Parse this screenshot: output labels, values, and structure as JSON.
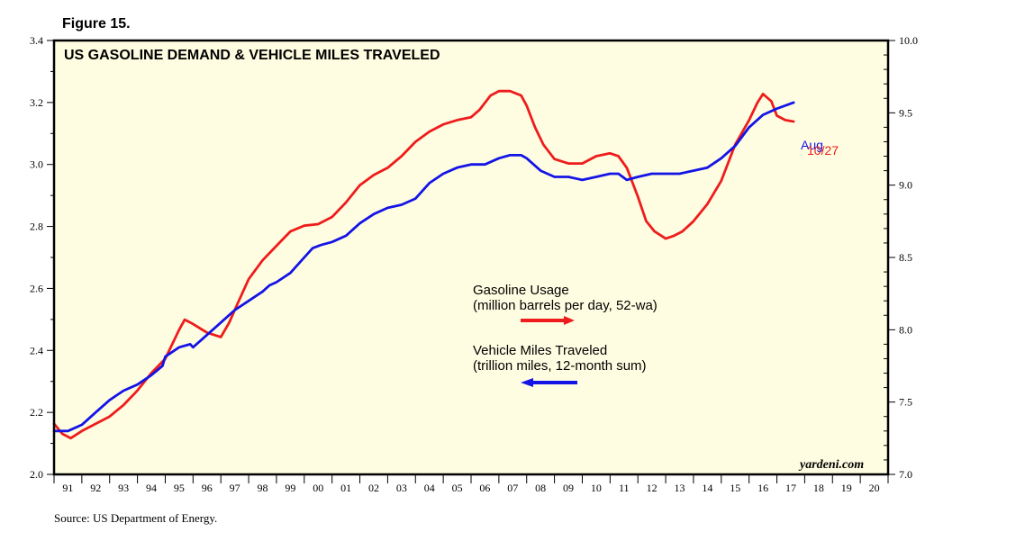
{
  "figure_label": "Figure 15.",
  "source": "Source: US Department of Energy.",
  "watermark": "yardeni.com",
  "colors": {
    "plot_bg": "#FFFDE1",
    "gasoline": "#EE1C1C",
    "vmt": "#1414E6",
    "frame": "#000000"
  },
  "chart_data": {
    "type": "line",
    "title": "US GASOLINE DEMAND & VEHICLE MILES TRAVELED",
    "x_tick_labels": [
      "91",
      "92",
      "93",
      "94",
      "95",
      "96",
      "97",
      "98",
      "99",
      "00",
      "01",
      "02",
      "03",
      "04",
      "05",
      "06",
      "07",
      "08",
      "09",
      "10",
      "11",
      "12",
      "13",
      "14",
      "15",
      "16",
      "17",
      "18",
      "19",
      "20"
    ],
    "xlim": [
      1991,
      2021
    ],
    "left_axis": {
      "ylim": [
        2.0,
        3.4
      ],
      "tick_labels": [
        "2.0",
        "2.2",
        "2.4",
        "2.6",
        "2.8",
        "3.0",
        "3.2",
        "3.4"
      ],
      "ticks": [
        2.0,
        2.2,
        2.4,
        2.6,
        2.8,
        3.0,
        3.2,
        3.4
      ]
    },
    "right_axis": {
      "ylim": [
        7.0,
        10.0
      ],
      "tick_labels": [
        "7.0",
        "7.5",
        "8.0",
        "8.5",
        "9.0",
        "9.5",
        "10.0"
      ],
      "ticks": [
        7.0,
        7.5,
        8.0,
        8.5,
        9.0,
        9.5,
        10.0
      ]
    },
    "legend": [
      {
        "lines": [
          "Gasoline Usage",
          "(million barrels per day, 52-wa)"
        ],
        "arrow": "right"
      },
      {
        "lines": [
          "Vehicle Miles Traveled",
          "(trillion miles, 12-month sum)"
        ],
        "arrow": "left"
      }
    ],
    "series": [
      {
        "name": "Vehicle Miles Traveled",
        "axis": "left",
        "end_label": "Aug",
        "x": [
          1991.0,
          1991.5,
          1992.0,
          1992.5,
          1993.0,
          1993.5,
          1994.0,
          1994.5,
          1994.9,
          1995.0,
          1995.5,
          1995.9,
          1996.0,
          1996.5,
          1997.0,
          1997.5,
          1998.0,
          1998.5,
          1998.75,
          1999.0,
          1999.5,
          2000.0,
          2000.3,
          2000.6,
          2001.0,
          2001.5,
          2002.0,
          2002.5,
          2003.0,
          2003.5,
          2004.0,
          2004.5,
          2005.0,
          2005.5,
          2006.0,
          2006.5,
          2007.0,
          2007.4,
          2007.8,
          2008.0,
          2008.5,
          2009.0,
          2009.5,
          2010.0,
          2010.5,
          2011.0,
          2011.3,
          2011.6,
          2012.0,
          2012.5,
          2013.0,
          2013.5,
          2014.0,
          2014.5,
          2015.0,
          2015.5,
          2016.0,
          2016.5,
          2017.0,
          2017.6
        ],
        "values": [
          2.14,
          2.14,
          2.16,
          2.2,
          2.24,
          2.27,
          2.29,
          2.32,
          2.35,
          2.38,
          2.41,
          2.42,
          2.41,
          2.45,
          2.49,
          2.53,
          2.56,
          2.59,
          2.61,
          2.62,
          2.65,
          2.7,
          2.73,
          2.74,
          2.75,
          2.77,
          2.81,
          2.84,
          2.86,
          2.87,
          2.89,
          2.94,
          2.97,
          2.99,
          3.0,
          3.0,
          3.02,
          3.03,
          3.03,
          3.02,
          2.98,
          2.96,
          2.96,
          2.95,
          2.96,
          2.97,
          2.97,
          2.95,
          2.96,
          2.97,
          2.97,
          2.97,
          2.98,
          2.99,
          3.02,
          3.06,
          3.12,
          3.16,
          3.18,
          3.2
        ]
      },
      {
        "name": "Gasoline Usage",
        "axis": "right",
        "end_label": "10/27",
        "x": [
          1991.0,
          1991.3,
          1991.6,
          1992.0,
          1992.5,
          1993.0,
          1993.5,
          1994.0,
          1994.5,
          1995.0,
          1995.5,
          1995.7,
          1996.0,
          1996.5,
          1997.0,
          1997.3,
          1997.6,
          1998.0,
          1998.5,
          1999.0,
          1999.5,
          2000.0,
          2000.5,
          2001.0,
          2001.5,
          2002.0,
          2002.5,
          2003.0,
          2003.5,
          2004.0,
          2004.5,
          2005.0,
          2005.5,
          2006.0,
          2006.3,
          2006.7,
          2007.0,
          2007.4,
          2007.8,
          2008.0,
          2008.3,
          2008.6,
          2009.0,
          2009.5,
          2010.0,
          2010.5,
          2011.0,
          2011.3,
          2011.6,
          2012.0,
          2012.3,
          2012.6,
          2013.0,
          2013.3,
          2013.6,
          2014.0,
          2014.5,
          2015.0,
          2015.5,
          2016.0,
          2016.3,
          2016.5,
          2016.8,
          2017.0,
          2017.3,
          2017.6
        ],
        "values": [
          7.35,
          7.28,
          7.25,
          7.3,
          7.35,
          7.4,
          7.48,
          7.58,
          7.7,
          7.8,
          8.0,
          8.07,
          8.04,
          7.98,
          7.95,
          8.05,
          8.18,
          8.35,
          8.48,
          8.58,
          8.68,
          8.72,
          8.73,
          8.78,
          8.88,
          9.0,
          9.07,
          9.12,
          9.2,
          9.3,
          9.37,
          9.42,
          9.45,
          9.47,
          9.52,
          9.62,
          9.65,
          9.65,
          9.62,
          9.55,
          9.4,
          9.28,
          9.18,
          9.15,
          9.15,
          9.2,
          9.22,
          9.2,
          9.12,
          8.92,
          8.75,
          8.68,
          8.63,
          8.65,
          8.68,
          8.75,
          8.87,
          9.03,
          9.28,
          9.45,
          9.57,
          9.63,
          9.58,
          9.48,
          9.45,
          9.44
        ]
      }
    ]
  }
}
